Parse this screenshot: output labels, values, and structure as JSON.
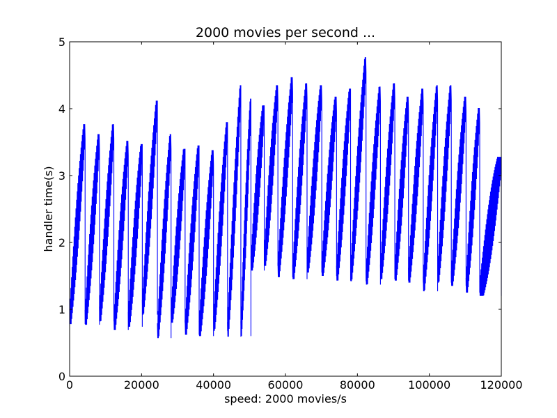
{
  "chart_data": {
    "type": "line",
    "title": "2000 movies per second ...",
    "xlabel": "speed: 2000 movies/s",
    "ylabel": "handler time(s)",
    "xlim": [
      0,
      120000
    ],
    "ylim": [
      0,
      5
    ],
    "xticks": [
      0,
      20000,
      40000,
      60000,
      80000,
      100000,
      120000
    ],
    "xtick_labels": [
      "0",
      "20000",
      "40000",
      "60000",
      "80000",
      "100000",
      "120000"
    ],
    "yticks": [
      0,
      1,
      2,
      3,
      4,
      5
    ],
    "ytick_labels": [
      "0",
      "1",
      "2",
      "3",
      "4",
      "5"
    ],
    "grid": false,
    "line_color": "#0000ff",
    "series": [
      {
        "segments": [
          {
            "x0": 0,
            "x1": 4300,
            "low": 0.78,
            "high": 3.77
          },
          {
            "x0": 4300,
            "x1": 8300,
            "low": 0.77,
            "high": 3.62
          },
          {
            "x0": 8300,
            "x1": 12300,
            "low": 0.82,
            "high": 3.77
          },
          {
            "x0": 12300,
            "x1": 16300,
            "low": 0.69,
            "high": 3.52
          },
          {
            "x0": 16300,
            "x1": 20200,
            "low": 0.74,
            "high": 3.47
          },
          {
            "x0": 20200,
            "x1": 24400,
            "low": 0.92,
            "high": 4.12
          },
          {
            "x0": 24400,
            "x1": 28200,
            "low": 0.57,
            "high": 3.62
          },
          {
            "x0": 28200,
            "x1": 32100,
            "low": 0.8,
            "high": 3.4
          },
          {
            "x0": 32100,
            "x1": 36000,
            "low": 0.62,
            "high": 3.45
          },
          {
            "x0": 36000,
            "x1": 40000,
            "low": 0.6,
            "high": 3.38
          },
          {
            "x0": 40000,
            "x1": 43900,
            "low": 0.68,
            "high": 3.8
          },
          {
            "x0": 43900,
            "x1": 47600,
            "low": 0.59,
            "high": 4.35
          },
          {
            "x0": 47600,
            "x1": 50400,
            "low": 0.6,
            "high": 4.15
          },
          {
            "x0": 50400,
            "x1": 54100,
            "low": 1.58,
            "high": 4.05
          },
          {
            "x0": 54100,
            "x1": 57900,
            "low": 1.65,
            "high": 4.35
          },
          {
            "x0": 57900,
            "x1": 62000,
            "low": 1.48,
            "high": 4.47
          },
          {
            "x0": 62000,
            "x1": 66000,
            "low": 1.45,
            "high": 4.38
          },
          {
            "x0": 66000,
            "x1": 70100,
            "low": 1.55,
            "high": 4.35
          },
          {
            "x0": 70100,
            "x1": 74200,
            "low": 1.5,
            "high": 4.18
          },
          {
            "x0": 74200,
            "x1": 78100,
            "low": 1.43,
            "high": 4.3
          },
          {
            "x0": 78100,
            "x1": 82400,
            "low": 1.42,
            "high": 4.77
          },
          {
            "x0": 82400,
            "x1": 86400,
            "low": 1.37,
            "high": 4.33
          },
          {
            "x0": 86400,
            "x1": 90400,
            "low": 1.45,
            "high": 4.38
          },
          {
            "x0": 90400,
            "x1": 94200,
            "low": 1.43,
            "high": 4.18
          },
          {
            "x0": 94200,
            "x1": 98300,
            "low": 1.4,
            "high": 4.3
          },
          {
            "x0": 98300,
            "x1": 102300,
            "low": 1.27,
            "high": 4.35
          },
          {
            "x0": 102300,
            "x1": 106100,
            "low": 1.4,
            "high": 4.35
          },
          {
            "x0": 106100,
            "x1": 110200,
            "low": 1.35,
            "high": 4.18
          },
          {
            "x0": 110200,
            "x1": 114000,
            "low": 1.25,
            "high": 4.01
          },
          {
            "x0": 114000,
            "x1": 120000,
            "low": 1.2,
            "high": 3.28
          }
        ]
      }
    ]
  }
}
